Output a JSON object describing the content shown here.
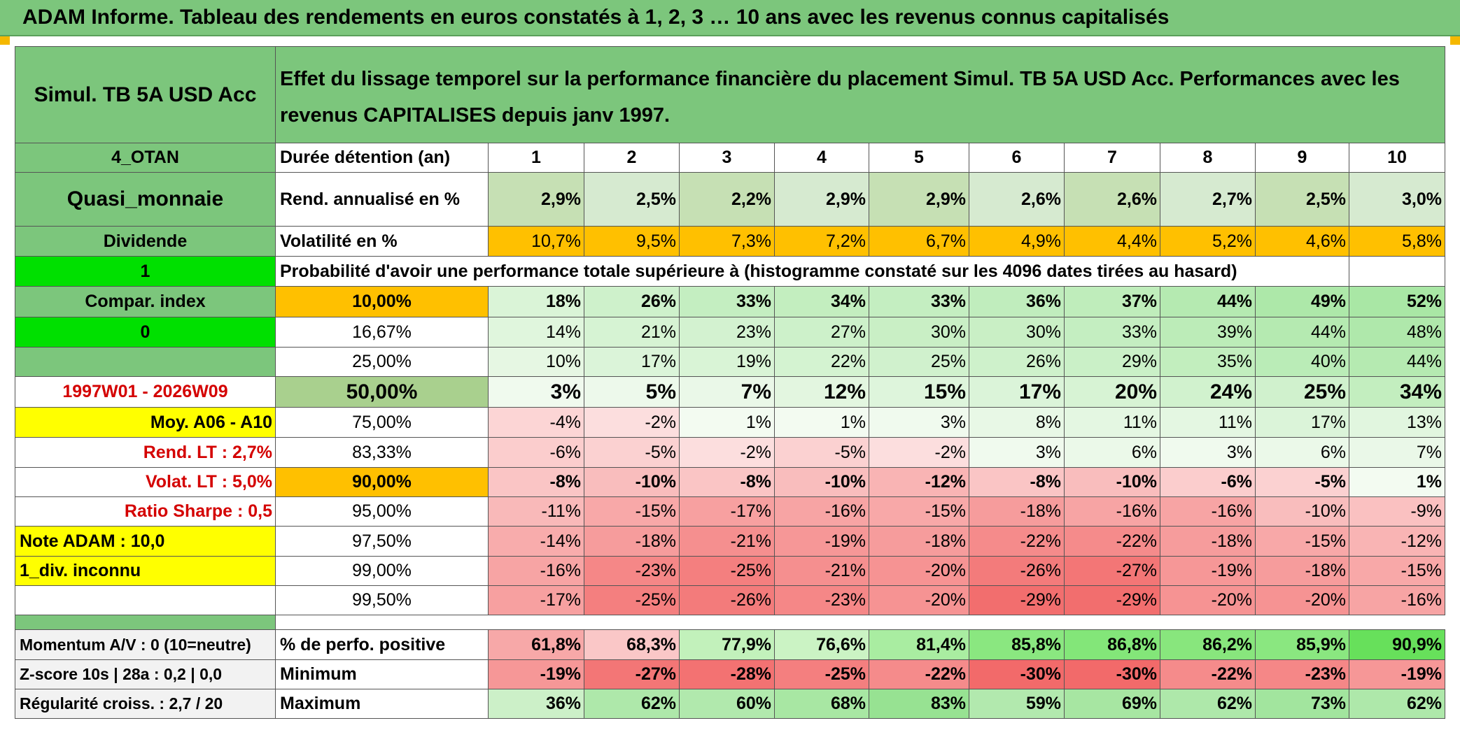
{
  "title": "ADAM Informe. Tableau des rendements en euros constatés à 1, 2, 3 … 10 ans avec les revenus connus capitalisés",
  "header": {
    "fund_name": "Simul. TB 5A USD Acc",
    "description": "Effet du lissage temporel sur la performance financière du placement Simul. TB 5A USD Acc. Performances avec les revenus CAPITALISES depuis janv 1997."
  },
  "left": {
    "category": "4_OTAN",
    "type": "Quasi_monnaie",
    "dividend_label": "Dividende",
    "dividend_value": "1",
    "compar_label": "Compar. index",
    "compar_value": "0",
    "period": "1997W01 - 2026W09",
    "moy": "Moy. A06 - A10",
    "rend_lt": "Rend. LT :   2,7%",
    "volat_lt": "Volat. LT :   5,0%",
    "sharpe": "Ratio Sharpe :    0,5",
    "note": "Note ADAM : 10,0",
    "div_inconnu": "1_div. inconnu",
    "momentum": "Momentum A/V : 0 (10=neutre)",
    "zscore": "Z-score 10s | 28a : 0,2 | 0,0",
    "regularite": "Régularité croiss. : 2,7 / 20"
  },
  "years": {
    "label": "Durée détention (an)",
    "values": [
      "1",
      "2",
      "3",
      "4",
      "5",
      "6",
      "7",
      "8",
      "9",
      "10"
    ]
  },
  "rend": {
    "label": "Rend. annualisé en %",
    "values": [
      "2,9%",
      "2,5%",
      "2,2%",
      "2,9%",
      "2,9%",
      "2,6%",
      "2,6%",
      "2,7%",
      "2,5%",
      "3,0%"
    ]
  },
  "volat": {
    "label": "Volatilité en %",
    "values": [
      "10,7%",
      "9,5%",
      "7,3%",
      "7,2%",
      "6,7%",
      "4,9%",
      "4,4%",
      "5,2%",
      "4,6%",
      "5,8%"
    ]
  },
  "prob_label": "Probabilité d'avoir une performance totale supérieure à (histogramme constaté sur les 4096 dates tirées au hasard)",
  "prob_rows": [
    {
      "threshold": "10,00%",
      "values": [
        "18%",
        "26%",
        "33%",
        "34%",
        "33%",
        "36%",
        "37%",
        "44%",
        "49%",
        "52%"
      ]
    },
    {
      "threshold": "16,67%",
      "values": [
        "14%",
        "21%",
        "23%",
        "27%",
        "30%",
        "30%",
        "33%",
        "39%",
        "44%",
        "48%"
      ]
    },
    {
      "threshold": "25,00%",
      "values": [
        "10%",
        "17%",
        "19%",
        "22%",
        "25%",
        "26%",
        "29%",
        "35%",
        "40%",
        "44%"
      ]
    },
    {
      "threshold": "50,00%",
      "values": [
        "3%",
        "5%",
        "7%",
        "12%",
        "15%",
        "17%",
        "20%",
        "24%",
        "25%",
        "34%"
      ]
    },
    {
      "threshold": "75,00%",
      "values": [
        "-4%",
        "-2%",
        "1%",
        "1%",
        "3%",
        "8%",
        "11%",
        "11%",
        "17%",
        "13%"
      ]
    },
    {
      "threshold": "83,33%",
      "values": [
        "-6%",
        "-5%",
        "-2%",
        "-5%",
        "-2%",
        "3%",
        "6%",
        "3%",
        "6%",
        "7%"
      ]
    },
    {
      "threshold": "90,00%",
      "values": [
        "-8%",
        "-10%",
        "-8%",
        "-10%",
        "-12%",
        "-8%",
        "-10%",
        "-6%",
        "-5%",
        "1%"
      ]
    },
    {
      "threshold": "95,00%",
      "values": [
        "-11%",
        "-15%",
        "-17%",
        "-16%",
        "-15%",
        "-18%",
        "-16%",
        "-16%",
        "-10%",
        "-9%"
      ]
    },
    {
      "threshold": "97,50%",
      "values": [
        "-14%",
        "-18%",
        "-21%",
        "-19%",
        "-18%",
        "-22%",
        "-22%",
        "-18%",
        "-15%",
        "-12%"
      ]
    },
    {
      "threshold": "99,00%",
      "values": [
        "-16%",
        "-23%",
        "-25%",
        "-21%",
        "-20%",
        "-26%",
        "-27%",
        "-19%",
        "-18%",
        "-15%"
      ]
    },
    {
      "threshold": "99,50%",
      "values": [
        "-17%",
        "-25%",
        "-26%",
        "-23%",
        "-20%",
        "-29%",
        "-29%",
        "-20%",
        "-20%",
        "-16%"
      ]
    }
  ],
  "stats": [
    {
      "label": "% de perfo. positive",
      "values": [
        "61,8%",
        "68,3%",
        "77,9%",
        "76,6%",
        "81,4%",
        "85,8%",
        "86,8%",
        "86,2%",
        "85,9%",
        "90,9%"
      ]
    },
    {
      "label": "Minimum",
      "values": [
        "-19%",
        "-27%",
        "-28%",
        "-25%",
        "-22%",
        "-30%",
        "-30%",
        "-22%",
        "-23%",
        "-19%"
      ]
    },
    {
      "label": "Maximum",
      "values": [
        "36%",
        "62%",
        "60%",
        "68%",
        "83%",
        "59%",
        "69%",
        "62%",
        "73%",
        "62%"
      ]
    }
  ],
  "colors": {
    "header_green": "#7cc67c",
    "lime": "#00e000",
    "yellow": "#ffff00",
    "orange": "#ffc000",
    "positive_green": "#63be7b",
    "negative_red": "#f8696b"
  }
}
